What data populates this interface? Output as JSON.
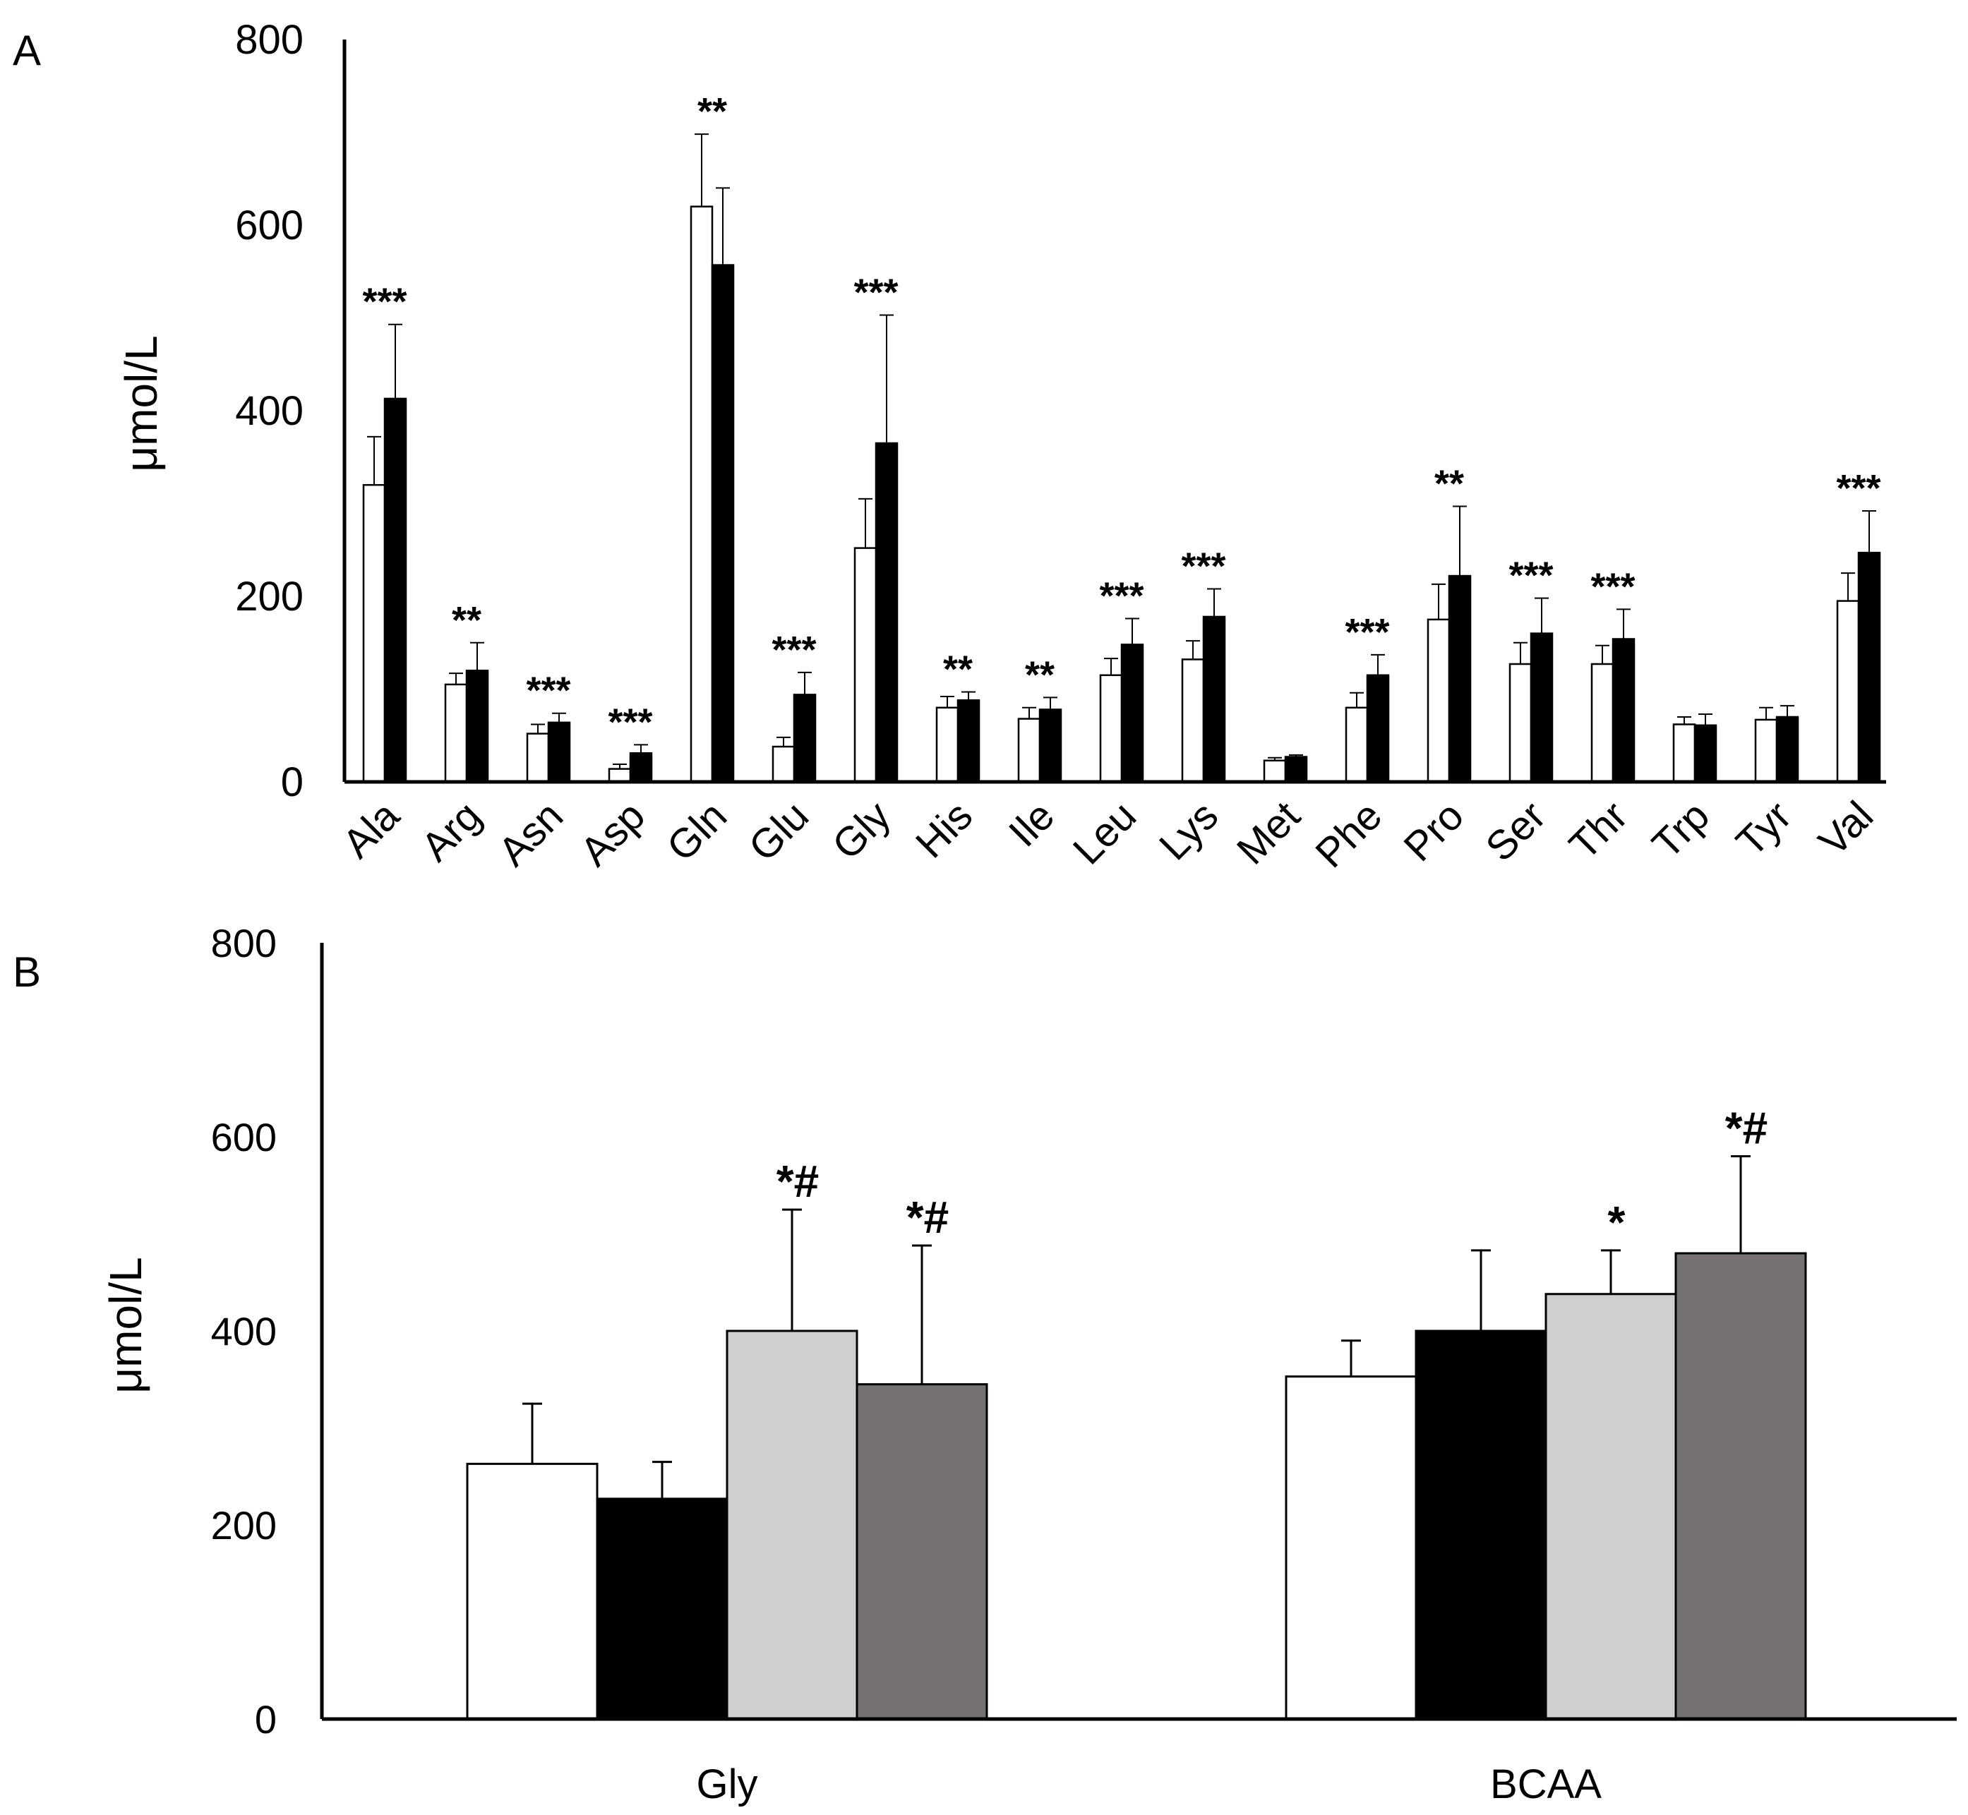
{
  "colors": {
    "axis": "#000000",
    "white_bar": "#ffffff",
    "black_bar": "#000000",
    "light_gray_bar": "#d0cfcf",
    "dark_gray_bar": "#767171",
    "bar_outline": "#000000",
    "error_bar": "#000000"
  },
  "chart_data": [
    {
      "panel_label": "A",
      "type": "bar",
      "ylabel": "μmol/L",
      "xlabel": "",
      "ylim": [
        0,
        800
      ],
      "yticks": [
        "0",
        "200",
        "400",
        "600",
        "800"
      ],
      "grid": false,
      "categories": [
        "Ala",
        "Arg",
        "Asn",
        "Asp",
        "Gln",
        "Glu",
        "Gly",
        "His",
        "Ile",
        "Leu",
        "Lys",
        "Met",
        "Phe",
        "Pro",
        "Ser",
        "Thr",
        "Trp",
        "Tyr",
        "Val"
      ],
      "series": [
        {
          "name": "white",
          "color": "#ffffff",
          "values": [
            320,
            105,
            52,
            14,
            620,
            38,
            252,
            80,
            68,
            115,
            132,
            23,
            80,
            175,
            127,
            127,
            62,
            67,
            195
          ],
          "errors": [
            52,
            12,
            10,
            5,
            78,
            10,
            53,
            12,
            12,
            18,
            20,
            3,
            16,
            38,
            23,
            20,
            8,
            13,
            30
          ]
        },
        {
          "name": "black",
          "color": "#000000",
          "values": [
            413,
            120,
            64,
            31,
            557,
            94,
            365,
            88,
            78,
            148,
            178,
            27,
            115,
            222,
            160,
            154,
            61,
            70,
            247
          ],
          "errors": [
            80,
            30,
            10,
            9,
            83,
            24,
            138,
            9,
            13,
            28,
            30,
            2,
            22,
            75,
            38,
            32,
            12,
            12,
            45
          ]
        }
      ],
      "annotations": [
        "***",
        "**",
        "***",
        "***",
        "**",
        "***",
        "***",
        "**",
        "**",
        "***",
        "***",
        "",
        "***",
        "**",
        "***",
        "***",
        "",
        "",
        "***"
      ]
    },
    {
      "panel_label": "B",
      "type": "bar",
      "ylabel": "μmol/L",
      "xlabel": "",
      "ylim": [
        0,
        800
      ],
      "yticks": [
        "0",
        "200",
        "400",
        "600",
        "800"
      ],
      "grid": false,
      "categories": [
        "Gly",
        "BCAA"
      ],
      "series": [
        {
          "name": "white",
          "color": "#ffffff",
          "values": [
            263,
            353
          ],
          "errors": [
            62,
            37
          ]
        },
        {
          "name": "black",
          "color": "#000000",
          "values": [
            227,
            400
          ],
          "errors": [
            38,
            83
          ]
        },
        {
          "name": "light gray",
          "color": "#d0cfcf",
          "values": [
            400,
            438
          ],
          "errors": [
            125,
            45
          ]
        },
        {
          "name": "dark gray",
          "color": "#767171",
          "values": [
            345,
            480
          ],
          "errors": [
            143,
            100
          ]
        }
      ],
      "annotations": [
        [
          "",
          "",
          "*#",
          "*#"
        ],
        [
          "",
          "",
          "*",
          "*#"
        ]
      ]
    }
  ]
}
